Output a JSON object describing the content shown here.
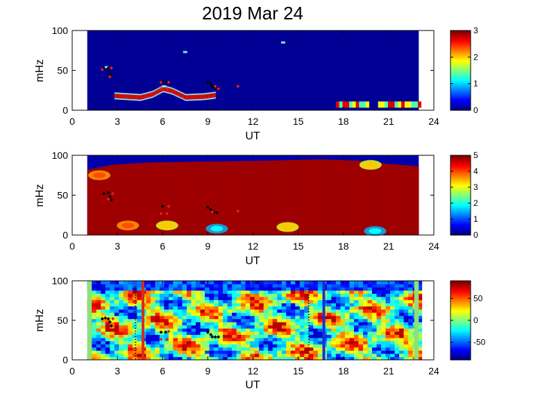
{
  "chart_data": [
    {
      "type": "heatmap",
      "title": "2019 Mar 24",
      "xlabel": "UT",
      "ylabel": "mHz",
      "xlim": [
        0,
        24
      ],
      "ylim": [
        0,
        100
      ],
      "xticks": [
        "0",
        "3",
        "6",
        "9",
        "12",
        "15",
        "18",
        "21",
        "24"
      ],
      "yticks": [
        "0",
        "50",
        "100"
      ],
      "colorbar": {
        "range": [
          0,
          3
        ],
        "ticks": [
          "0",
          "1",
          "2",
          "3"
        ],
        "colormap": "jet"
      },
      "data_extent_hours": [
        1.0,
        23.0
      ],
      "features": {
        "band": [
          {
            "t": 2.8,
            "f": 18
          },
          {
            "t": 4.5,
            "f": 16
          },
          {
            "t": 5.3,
            "f": 20
          },
          {
            "t": 6.0,
            "f": 27
          },
          {
            "t": 6.6,
            "f": 24
          },
          {
            "t": 7.5,
            "f": 16
          },
          {
            "t": 8.7,
            "f": 17
          },
          {
            "t": 9.5,
            "f": 19
          }
        ],
        "late_segments": [
          {
            "t0": 17.5,
            "t1": 19.6,
            "f": 8
          },
          {
            "t0": 20.3,
            "t1": 23.0,
            "f": 8
          }
        ],
        "specks": [
          {
            "t": 7.5,
            "f": 73
          },
          {
            "t": 14.0,
            "f": 85
          },
          {
            "t": 2.3,
            "f": 54
          },
          {
            "t": 6.1,
            "f": 30
          }
        ]
      },
      "markers": {
        "black": [
          {
            "t": 2.1,
            "f": 52
          },
          {
            "t": 2.4,
            "f": 53
          },
          {
            "t": 2.5,
            "f": 48
          },
          {
            "t": 2.6,
            "f": 44
          },
          {
            "t": 6.0,
            "f": 36
          },
          {
            "t": 6.3,
            "f": 35
          },
          {
            "t": 9.0,
            "f": 35
          },
          {
            "t": 9.2,
            "f": 33
          },
          {
            "t": 9.3,
            "f": 30
          },
          {
            "t": 9.5,
            "f": 29
          },
          {
            "t": 9.7,
            "f": 28
          }
        ],
        "red": [
          {
            "t": 2.0,
            "f": 51
          },
          {
            "t": 2.6,
            "f": 53
          },
          {
            "t": 2.5,
            "f": 42
          },
          {
            "t": 5.9,
            "f": 27
          },
          {
            "t": 6.3,
            "f": 27
          },
          {
            "t": 5.9,
            "f": 35
          },
          {
            "t": 6.4,
            "f": 35
          },
          {
            "t": 9.5,
            "f": 30
          },
          {
            "t": 9.7,
            "f": 27
          },
          {
            "t": 11.0,
            "f": 30
          }
        ]
      }
    },
    {
      "type": "heatmap",
      "xlabel": "UT",
      "ylabel": "mHz",
      "xlim": [
        0,
        24
      ],
      "ylim": [
        0,
        100
      ],
      "xticks": [
        "0",
        "3",
        "6",
        "9",
        "12",
        "15",
        "18",
        "21",
        "24"
      ],
      "yticks": [
        "0",
        "50",
        "100"
      ],
      "colorbar": {
        "range": [
          0,
          5
        ],
        "ticks": [
          "0",
          "1",
          "2",
          "3",
          "4",
          "5"
        ],
        "colormap": "jet"
      },
      "data_extent_hours": [
        1.0,
        23.0
      ],
      "features": {
        "upper_boundary": [
          {
            "t": 1.0,
            "f": 82
          },
          {
            "t": 2.5,
            "f": 88
          },
          {
            "t": 5.0,
            "f": 91
          },
          {
            "t": 8.0,
            "f": 92
          },
          {
            "t": 12.0,
            "f": 93
          },
          {
            "t": 16.5,
            "f": 95
          },
          {
            "t": 19.0,
            "f": 93
          },
          {
            "t": 21.0,
            "f": 89
          },
          {
            "t": 23.0,
            "f": 86
          }
        ],
        "blobs": [
          {
            "t": 6.3,
            "f": 12,
            "level": "yellow"
          },
          {
            "t": 9.6,
            "f": 8,
            "level": "cyan"
          },
          {
            "t": 14.3,
            "f": 10,
            "level": "yellow"
          },
          {
            "t": 20.1,
            "f": 5,
            "level": "cyan"
          },
          {
            "t": 3.7,
            "f": 12,
            "level": "orange"
          },
          {
            "t": 19.8,
            "f": 88,
            "level": "yellow"
          },
          {
            "t": 1.8,
            "f": 75,
            "level": "orange"
          }
        ]
      },
      "markers": {
        "black": [
          {
            "t": 2.1,
            "f": 52
          },
          {
            "t": 2.4,
            "f": 53
          },
          {
            "t": 2.5,
            "f": 48
          },
          {
            "t": 2.6,
            "f": 44
          },
          {
            "t": 6.0,
            "f": 36
          },
          {
            "t": 9.0,
            "f": 35
          },
          {
            "t": 9.2,
            "f": 32
          },
          {
            "t": 9.4,
            "f": 29
          },
          {
            "t": 9.6,
            "f": 28
          }
        ],
        "red": [
          {
            "t": 2.7,
            "f": 52
          },
          {
            "t": 2.4,
            "f": 45
          },
          {
            "t": 5.9,
            "f": 27
          },
          {
            "t": 6.3,
            "f": 27
          },
          {
            "t": 6.4,
            "f": 36
          },
          {
            "t": 11.0,
            "f": 30
          },
          {
            "t": 9.3,
            "f": 29
          }
        ]
      }
    },
    {
      "type": "heatmap",
      "xlabel": "UT",
      "ylabel": "mHz",
      "xlim": [
        0,
        24
      ],
      "ylim": [
        0,
        100
      ],
      "xticks": [
        "0",
        "3",
        "6",
        "9",
        "12",
        "15",
        "18",
        "21",
        "24"
      ],
      "yticks": [
        "0",
        "50",
        "100"
      ],
      "colorbar": {
        "range": [
          -90,
          90
        ],
        "ticks": [
          "50",
          "0",
          "-50"
        ],
        "tick_values": [
          50,
          0,
          -50
        ],
        "colormap": "jet"
      },
      "data_extent_hours": [
        1.0,
        23.0
      ],
      "vertical_lines": [
        {
          "t": 4.7,
          "color": "#dd2a1c",
          "style": "solid"
        },
        {
          "t": 16.7,
          "color": "#1b2fd6",
          "style": "solid"
        },
        {
          "t": 4.2,
          "color": "#000000",
          "style": "dotted"
        },
        {
          "t": 15.7,
          "color": "#000000",
          "style": "dotted"
        }
      ],
      "markers": {
        "black": [
          {
            "t": 2.0,
            "f": 52
          },
          {
            "t": 2.2,
            "f": 53
          },
          {
            "t": 2.4,
            "f": 52
          },
          {
            "t": 2.5,
            "f": 48
          },
          {
            "t": 2.6,
            "f": 43
          },
          {
            "t": 5.9,
            "f": 35
          },
          {
            "t": 6.2,
            "f": 35
          },
          {
            "t": 9.0,
            "f": 35
          },
          {
            "t": 9.2,
            "f": 32
          },
          {
            "t": 9.3,
            "f": 29
          },
          {
            "t": 9.5,
            "f": 29
          },
          {
            "t": 9.7,
            "f": 29
          }
        ],
        "red": [
          {
            "t": 2.7,
            "f": 52
          },
          {
            "t": 5.9,
            "f": 26
          },
          {
            "t": 6.3,
            "f": 26
          },
          {
            "t": 6.4,
            "f": 36
          },
          {
            "t": 11.0,
            "f": 30
          }
        ]
      }
    }
  ]
}
